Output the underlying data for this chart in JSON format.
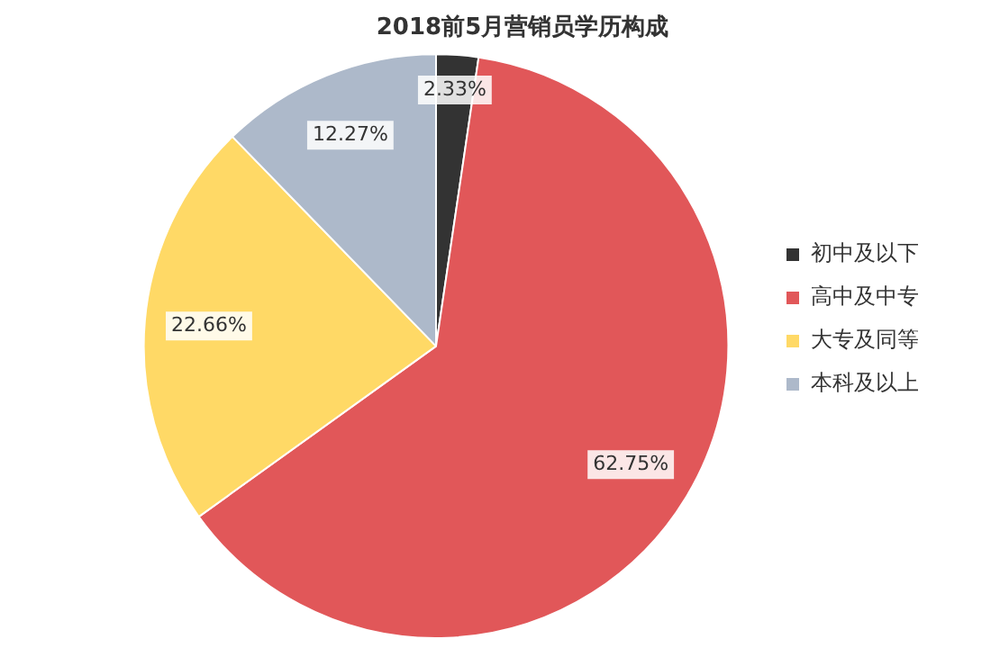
{
  "chart_data": {
    "type": "pie",
    "title": "2018前5月营销员学历构成",
    "categories": [
      "初中及以下",
      "高中及中专",
      "大专及同等",
      "本科及以上"
    ],
    "values": [
      2.33,
      62.75,
      22.66,
      12.27
    ],
    "colors": [
      "#333333",
      "#e15759",
      "#ffd966",
      "#adb9ca"
    ],
    "value_labels": [
      "2.33%",
      "62.75%",
      "22.66%",
      "12.27%"
    ],
    "legend": "right"
  }
}
